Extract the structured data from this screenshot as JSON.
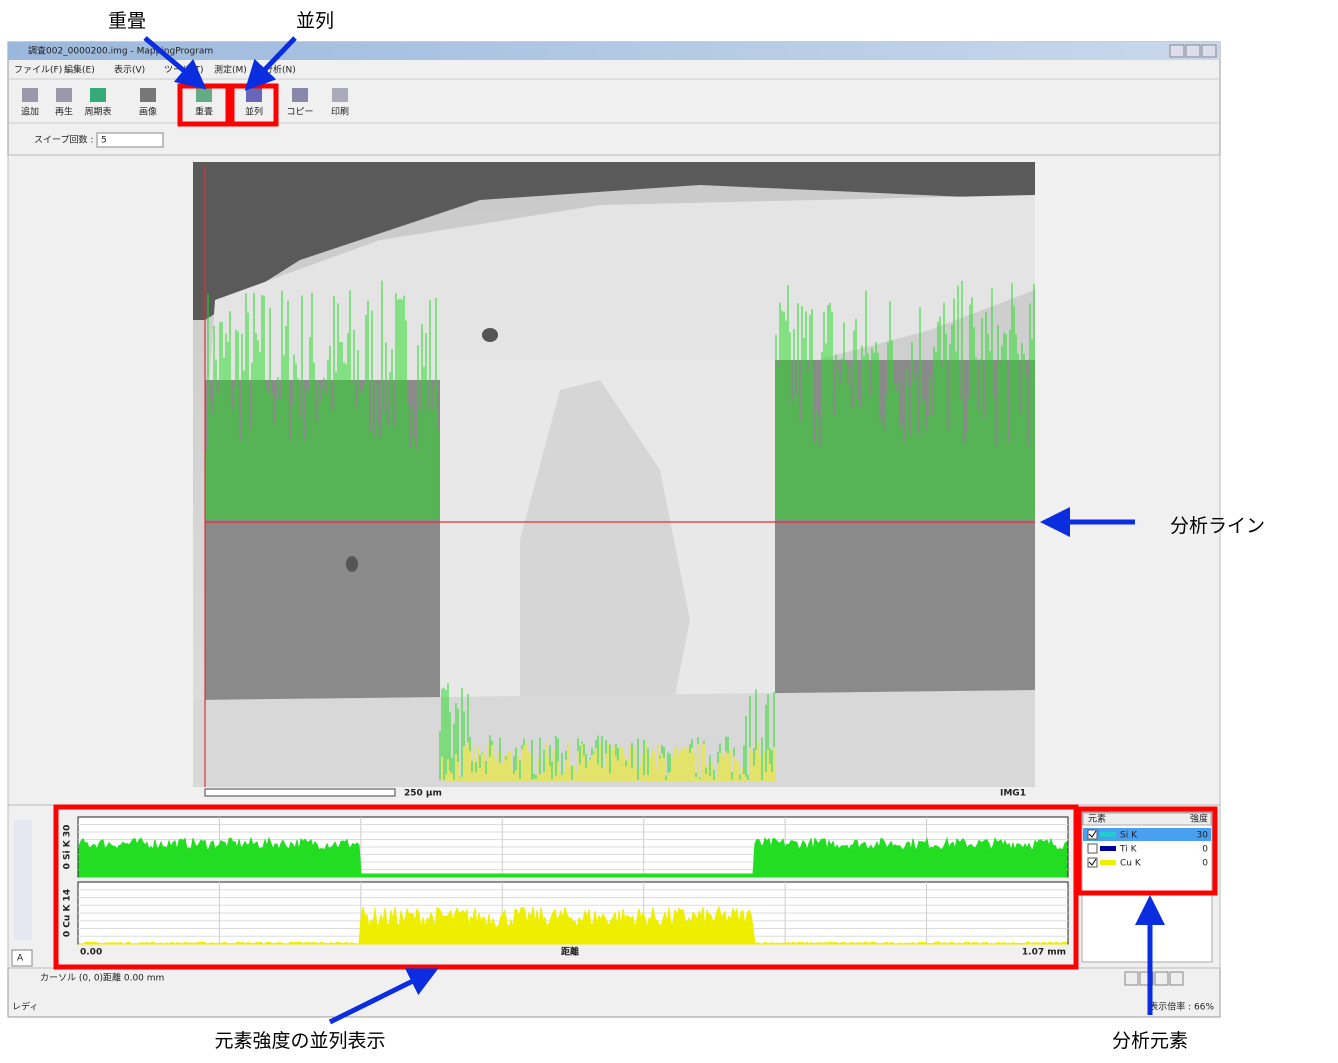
{
  "annotations": {
    "overlay": "重畳",
    "parallel": "並列",
    "analysis_line": "分析ライン",
    "parallel_display": "元素強度の並列表示",
    "elements": "分析元素"
  },
  "window": {
    "title": "調査002_0000200.img - MappingProgram"
  },
  "menu": [
    "ファイル(F)",
    "編集(E)",
    "表示(V)",
    "ツール(T)",
    "測定(M)",
    "分析(N)"
  ],
  "toolbar": [
    "追加",
    "再生",
    "周期表",
    "画像",
    "重畳",
    "並列",
    "コピー",
    "印刷"
  ],
  "sweep": {
    "label": "スイープ回数 :",
    "value": "5"
  },
  "image": {
    "scale": "250 µm",
    "name": "IMG1"
  },
  "profile": {
    "channels": [
      {
        "label": "0 Si K 30",
        "color": "#22dd22"
      },
      {
        "label": "0 Cu K 14",
        "color": "#eeee00"
      }
    ],
    "x_start": "0.00",
    "x_label": "距離",
    "x_end": "1.07 mm"
  },
  "elements": {
    "header": [
      "元素",
      "強度"
    ],
    "rows": [
      {
        "name": "Si K",
        "value": "30",
        "color": "#22cccc",
        "checked": true
      },
      {
        "name": "Ti K",
        "value": "0",
        "color": "#000099",
        "checked": false
      },
      {
        "name": "Cu K",
        "value": "0",
        "color": "#eeee00",
        "checked": true
      }
    ]
  },
  "status": {
    "cursor": "カーソル (0, 0)",
    "distance": "距離 0.00 mm",
    "ready": "レディ",
    "zoom": "表示倍率 : 66%"
  }
}
